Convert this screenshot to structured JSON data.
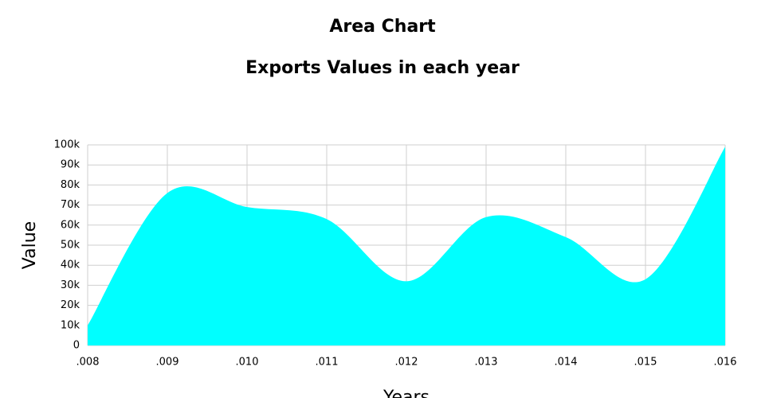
{
  "chart_data": {
    "type": "area",
    "title": "Area Chart",
    "subtitle": "Exports Values in each year",
    "x_label": "Years",
    "y_label": "Value",
    "categories": [
      ".008",
      ".009",
      ".010",
      ".011",
      ".012",
      ".013",
      ".014",
      ".015",
      ".016"
    ],
    "values": [
      10000,
      76000,
      69000,
      63000,
      32000,
      64000,
      54000,
      33000,
      99000
    ],
    "color": "#00ffff",
    "ylim": [
      0,
      100000
    ],
    "yticks": [
      0,
      {
        "value": 10000,
        "label": "10k"
      },
      {
        "value": 20000,
        "label": "20k"
      },
      {
        "value": 30000,
        "label": "30k"
      },
      {
        "value": 40000,
        "label": "40k"
      },
      {
        "value": 50000,
        "label": "50k"
      },
      {
        "value": 60000,
        "label": "60k"
      },
      {
        "value": 70000,
        "label": "70k"
      },
      {
        "value": 80000,
        "label": "80k"
      },
      {
        "value": 90000,
        "label": "90k"
      },
      {
        "value": 100000,
        "label": "100k"
      }
    ],
    "grid": true
  }
}
